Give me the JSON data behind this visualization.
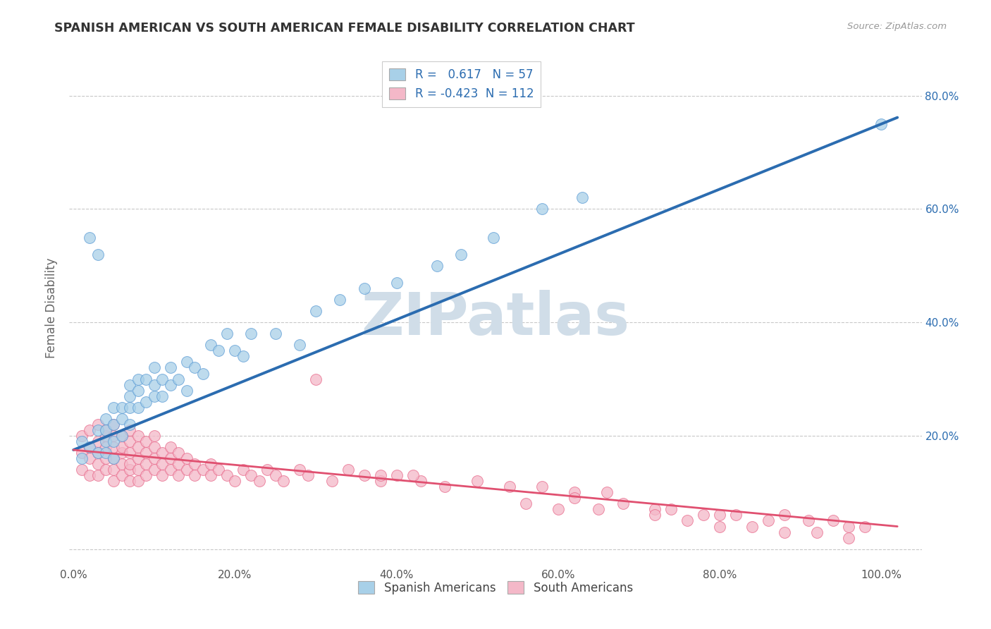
{
  "title": "SPANISH AMERICAN VS SOUTH AMERICAN FEMALE DISABILITY CORRELATION CHART",
  "source": "Source: ZipAtlas.com",
  "ylabel": "Female Disability",
  "blue_R": 0.617,
  "blue_N": 57,
  "pink_R": -0.423,
  "pink_N": 112,
  "xlim": [
    -0.005,
    1.05
  ],
  "ylim": [
    -0.03,
    0.88
  ],
  "xticks": [
    0.0,
    0.2,
    0.4,
    0.6,
    0.8,
    1.0
  ],
  "yticks": [
    0.0,
    0.2,
    0.4,
    0.6,
    0.8
  ],
  "blue_color": "#a8d0e8",
  "blue_edge_color": "#5b9bd5",
  "pink_color": "#f4b8c8",
  "pink_edge_color": "#e8688a",
  "blue_line_color": "#2b6cb0",
  "pink_line_color": "#e05070",
  "watermark_color": "#d0dde8",
  "background_color": "#ffffff",
  "grid_color": "#c8c8c8",
  "blue_scatter_x": [
    0.01,
    0.01,
    0.02,
    0.02,
    0.03,
    0.03,
    0.03,
    0.04,
    0.04,
    0.04,
    0.04,
    0.05,
    0.05,
    0.05,
    0.05,
    0.06,
    0.06,
    0.06,
    0.07,
    0.07,
    0.07,
    0.07,
    0.08,
    0.08,
    0.08,
    0.09,
    0.09,
    0.1,
    0.1,
    0.1,
    0.11,
    0.11,
    0.12,
    0.12,
    0.13,
    0.14,
    0.14,
    0.15,
    0.16,
    0.17,
    0.18,
    0.19,
    0.2,
    0.21,
    0.22,
    0.25,
    0.28,
    0.3,
    0.33,
    0.36,
    0.4,
    0.45,
    0.48,
    0.52,
    0.58,
    0.63,
    1.0
  ],
  "blue_scatter_y": [
    0.16,
    0.19,
    0.18,
    0.55,
    0.17,
    0.21,
    0.52,
    0.17,
    0.19,
    0.23,
    0.21,
    0.16,
    0.19,
    0.22,
    0.25,
    0.2,
    0.23,
    0.25,
    0.22,
    0.25,
    0.27,
    0.29,
    0.25,
    0.28,
    0.3,
    0.26,
    0.3,
    0.27,
    0.29,
    0.32,
    0.27,
    0.3,
    0.29,
    0.32,
    0.3,
    0.28,
    0.33,
    0.32,
    0.31,
    0.36,
    0.35,
    0.38,
    0.35,
    0.34,
    0.38,
    0.38,
    0.36,
    0.42,
    0.44,
    0.46,
    0.47,
    0.5,
    0.52,
    0.55,
    0.6,
    0.62,
    0.75
  ],
  "pink_scatter_x": [
    0.01,
    0.01,
    0.01,
    0.02,
    0.02,
    0.02,
    0.02,
    0.03,
    0.03,
    0.03,
    0.03,
    0.03,
    0.04,
    0.04,
    0.04,
    0.04,
    0.04,
    0.05,
    0.05,
    0.05,
    0.05,
    0.05,
    0.05,
    0.06,
    0.06,
    0.06,
    0.06,
    0.06,
    0.07,
    0.07,
    0.07,
    0.07,
    0.07,
    0.07,
    0.08,
    0.08,
    0.08,
    0.08,
    0.08,
    0.09,
    0.09,
    0.09,
    0.09,
    0.1,
    0.1,
    0.1,
    0.1,
    0.11,
    0.11,
    0.11,
    0.12,
    0.12,
    0.12,
    0.13,
    0.13,
    0.13,
    0.14,
    0.14,
    0.15,
    0.15,
    0.16,
    0.17,
    0.17,
    0.18,
    0.19,
    0.2,
    0.21,
    0.22,
    0.23,
    0.24,
    0.25,
    0.26,
    0.28,
    0.29,
    0.3,
    0.32,
    0.34,
    0.36,
    0.38,
    0.4,
    0.43,
    0.46,
    0.5,
    0.54,
    0.58,
    0.62,
    0.66,
    0.38,
    0.42,
    0.56,
    0.6,
    0.65,
    0.72,
    0.78,
    0.82,
    0.88,
    0.91,
    0.94,
    0.96,
    0.98,
    0.62,
    0.68,
    0.74,
    0.8,
    0.86,
    0.72,
    0.76,
    0.8,
    0.84,
    0.88,
    0.92,
    0.96
  ],
  "pink_scatter_y": [
    0.14,
    0.17,
    0.2,
    0.13,
    0.16,
    0.18,
    0.21,
    0.13,
    0.15,
    0.17,
    0.19,
    0.22,
    0.14,
    0.16,
    0.18,
    0.2,
    0.21,
    0.12,
    0.14,
    0.16,
    0.18,
    0.2,
    0.22,
    0.13,
    0.15,
    0.17,
    0.18,
    0.2,
    0.12,
    0.14,
    0.15,
    0.17,
    0.19,
    0.21,
    0.12,
    0.14,
    0.16,
    0.18,
    0.2,
    0.13,
    0.15,
    0.17,
    0.19,
    0.14,
    0.16,
    0.18,
    0.2,
    0.13,
    0.15,
    0.17,
    0.14,
    0.16,
    0.18,
    0.13,
    0.15,
    0.17,
    0.14,
    0.16,
    0.13,
    0.15,
    0.14,
    0.13,
    0.15,
    0.14,
    0.13,
    0.12,
    0.14,
    0.13,
    0.12,
    0.14,
    0.13,
    0.12,
    0.14,
    0.13,
    0.3,
    0.12,
    0.14,
    0.13,
    0.12,
    0.13,
    0.12,
    0.11,
    0.12,
    0.11,
    0.11,
    0.1,
    0.1,
    0.13,
    0.13,
    0.08,
    0.07,
    0.07,
    0.07,
    0.06,
    0.06,
    0.06,
    0.05,
    0.05,
    0.04,
    0.04,
    0.09,
    0.08,
    0.07,
    0.06,
    0.05,
    0.06,
    0.05,
    0.04,
    0.04,
    0.03,
    0.03,
    0.02
  ]
}
